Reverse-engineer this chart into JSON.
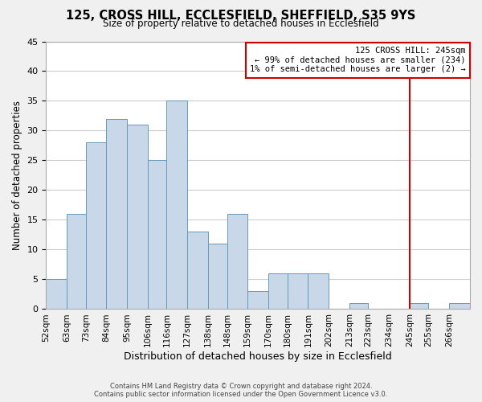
{
  "title": "125, CROSS HILL, ECCLESFIELD, SHEFFIELD, S35 9YS",
  "subtitle": "Size of property relative to detached houses in Ecclesfield",
  "xlabel": "Distribution of detached houses by size in Ecclesfield",
  "ylabel": "Number of detached properties",
  "footer_line1": "Contains HM Land Registry data © Crown copyright and database right 2024.",
  "footer_line2": "Contains public sector information licensed under the Open Government Licence v3.0.",
  "bin_labels": [
    "52sqm",
    "63sqm",
    "73sqm",
    "84sqm",
    "95sqm",
    "106sqm",
    "116sqm",
    "127sqm",
    "138sqm",
    "148sqm",
    "159sqm",
    "170sqm",
    "180sqm",
    "191sqm",
    "202sqm",
    "213sqm",
    "223sqm",
    "234sqm",
    "245sqm",
    "255sqm",
    "266sqm"
  ],
  "bar_heights": [
    5,
    16,
    28,
    32,
    31,
    25,
    35,
    13,
    11,
    16,
    3,
    6,
    6,
    6,
    0,
    1,
    0,
    0,
    1,
    0,
    1
  ],
  "bar_color": "#c8d8e8",
  "bar_edge_color": "#6699bb",
  "reference_line_x_label": "245sqm",
  "reference_line_color": "#cc0000",
  "annotation_line1": "125 CROSS HILL: 245sqm",
  "annotation_line2": "← 99% of detached houses are smaller (234)",
  "annotation_line3": "1% of semi-detached houses are larger (2) →",
  "annotation_box_color": "#cc0000",
  "ylim": [
    0,
    45
  ],
  "yticks": [
    0,
    5,
    10,
    15,
    20,
    25,
    30,
    35,
    40,
    45
  ],
  "grid_color": "#cccccc",
  "background_color": "#f0f0f0",
  "plot_bg_color": "#ffffff"
}
